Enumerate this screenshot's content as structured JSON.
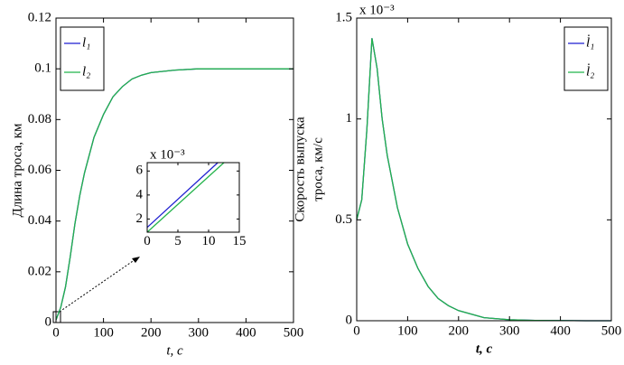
{
  "chart_data": [
    {
      "type": "line",
      "y_label": "Длина троса, км",
      "x_label": "t, c",
      "x": [
        0,
        10,
        20,
        30,
        40,
        50,
        60,
        80,
        100,
        120,
        140,
        160,
        180,
        200,
        250,
        300,
        350,
        400,
        450,
        500
      ],
      "series": [
        {
          "name": "l₁",
          "color": "#1f1fd0",
          "values": [
            0.001,
            0.006,
            0.014,
            0.026,
            0.039,
            0.05,
            0.059,
            0.073,
            0.082,
            0.089,
            0.093,
            0.096,
            0.0975,
            0.0985,
            0.0995,
            0.1,
            0.1,
            0.1,
            0.1,
            0.1
          ]
        },
        {
          "name": "l₂",
          "color": "#22b34a",
          "values": [
            0.001,
            0.006,
            0.014,
            0.026,
            0.039,
            0.05,
            0.059,
            0.073,
            0.082,
            0.089,
            0.093,
            0.096,
            0.0975,
            0.0985,
            0.0995,
            0.1,
            0.1,
            0.1,
            0.1,
            0.1
          ]
        }
      ],
      "xlim": [
        0,
        500
      ],
      "xticks": [
        0,
        100,
        200,
        300,
        400,
        500
      ],
      "ylim": [
        0,
        0.12
      ],
      "yticks": [
        0,
        0.02,
        0.04,
        0.06,
        0.08,
        0.1,
        0.12
      ],
      "legend": "upper left"
    },
    {
      "type": "line",
      "y_multiplier": "x 10⁻³",
      "series": [
        {
          "name": "l₁",
          "color": "#1f1fd0",
          "x": [
            0,
            11.5
          ],
          "values": [
            1.3,
            6.7
          ]
        },
        {
          "name": "l₂",
          "color": "#22b34a",
          "x": [
            0,
            12.5
          ],
          "values": [
            0.9,
            6.7
          ]
        }
      ],
      "xlim": [
        0,
        15
      ],
      "xticks": [
        0,
        5,
        10,
        15
      ],
      "ylim": [
        0.9,
        6.7
      ],
      "yticks": [
        2,
        4,
        6
      ]
    },
    {
      "type": "line",
      "y_label": [
        "Скорость выпуска",
        "троса, км/с"
      ],
      "x_label": "t, c",
      "y_multiplier": "x 10⁻³",
      "x": [
        0,
        10,
        20,
        30,
        40,
        50,
        60,
        80,
        100,
        120,
        140,
        160,
        180,
        200,
        250,
        300,
        350,
        400,
        450,
        500
      ],
      "series": [
        {
          "name": "l̇₁",
          "color": "#1f1fd0",
          "values": [
            0.5,
            0.6,
            0.95,
            1.4,
            1.25,
            1.0,
            0.82,
            0.56,
            0.38,
            0.26,
            0.17,
            0.11,
            0.075,
            0.05,
            0.015,
            0.005,
            0.002,
            0.001,
            0,
            0
          ]
        },
        {
          "name": "l̇₂",
          "color": "#22b34a",
          "values": [
            0.5,
            0.6,
            0.95,
            1.4,
            1.25,
            1.0,
            0.82,
            0.56,
            0.38,
            0.26,
            0.17,
            0.11,
            0.075,
            0.05,
            0.015,
            0.005,
            0.002,
            0.001,
            0,
            0
          ]
        }
      ],
      "xlim": [
        0,
        500
      ],
      "xticks": [
        0,
        100,
        200,
        300,
        400,
        500
      ],
      "ylim": [
        0,
        1.5
      ],
      "yticks": [
        0,
        0.5,
        1,
        1.5
      ],
      "legend": "upper right"
    }
  ]
}
